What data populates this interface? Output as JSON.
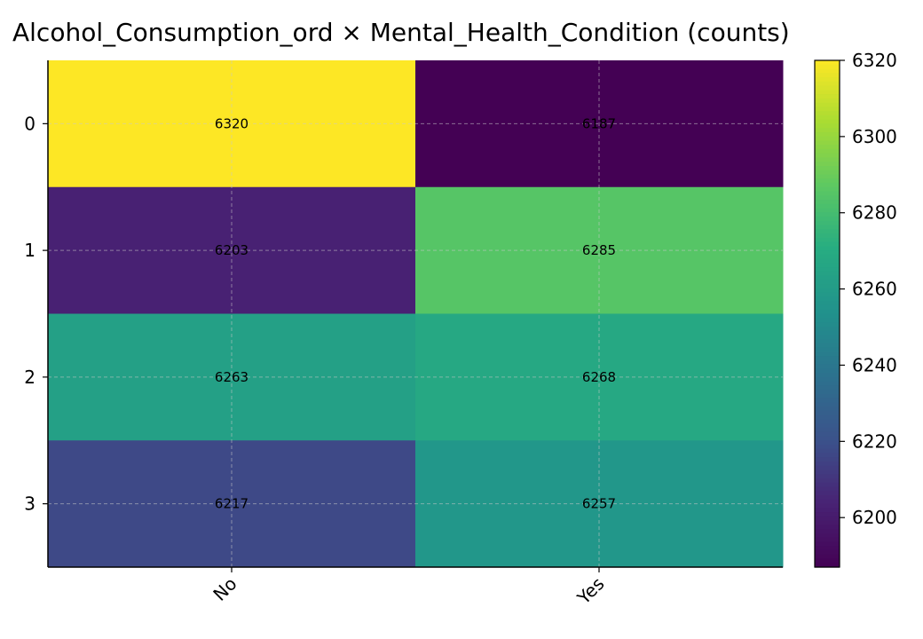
{
  "chart_data": {
    "type": "heatmap",
    "title": "Alcohol_Consumption_ord × Mental_Health_Condition (counts)",
    "x_categories": [
      "No",
      "Yes"
    ],
    "y_categories": [
      "0",
      "1",
      "2",
      "3"
    ],
    "values": [
      [
        6320,
        6187
      ],
      [
        6203,
        6285
      ],
      [
        6263,
        6268
      ],
      [
        6217,
        6257
      ]
    ],
    "colorbar": {
      "min": 6187,
      "max": 6320,
      "ticks": [
        6200,
        6220,
        6240,
        6260,
        6280,
        6300,
        6320
      ],
      "colormap": "viridis"
    },
    "grid": true,
    "xtick_rotation": 45
  }
}
